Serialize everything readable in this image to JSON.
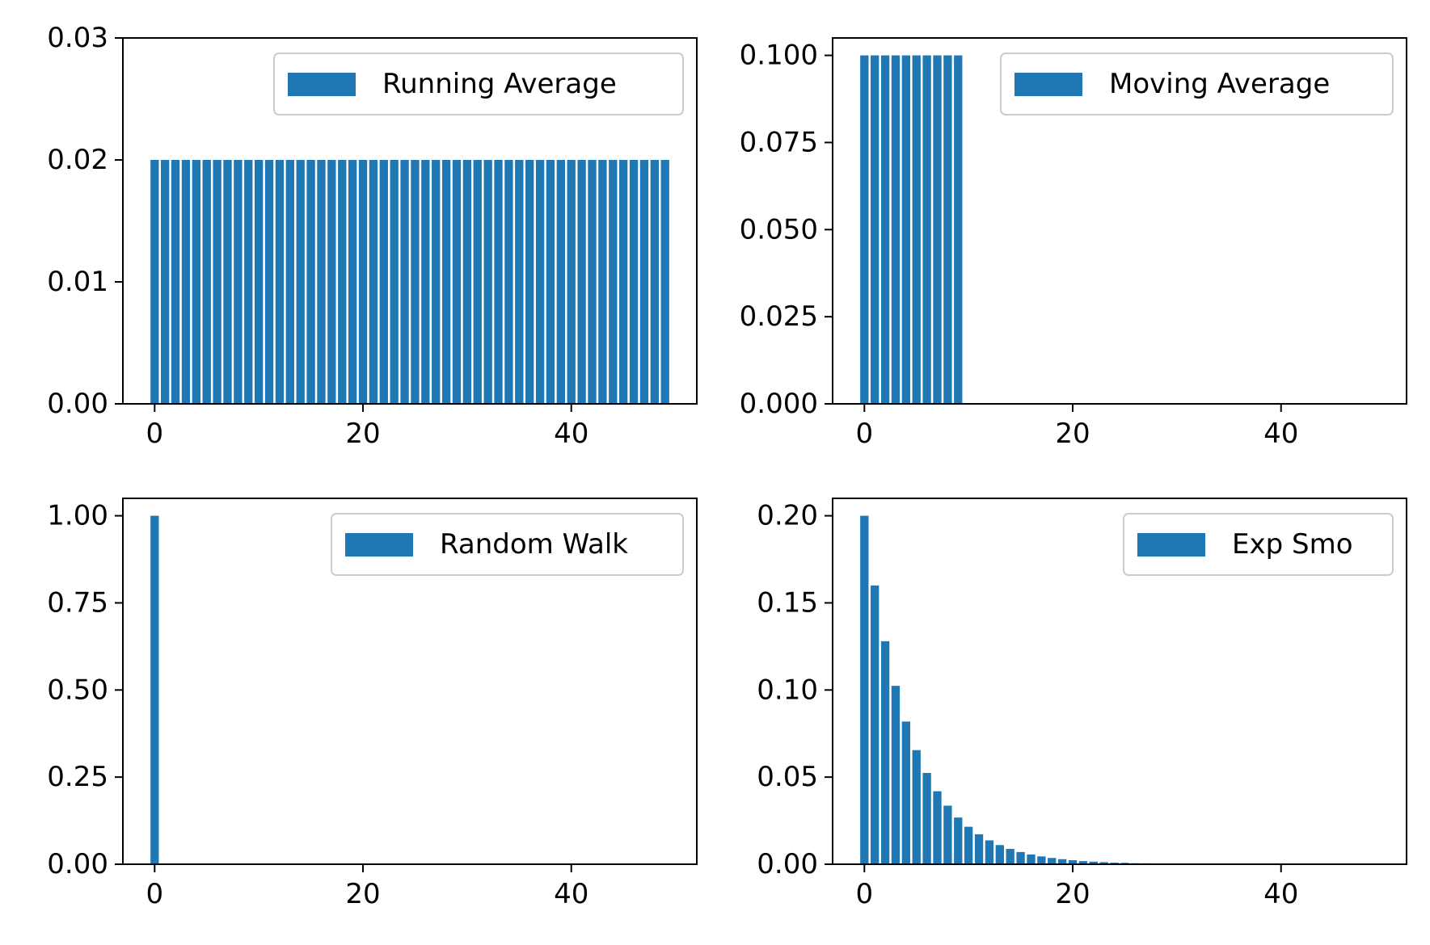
{
  "colors": {
    "bar": "#1f77b4",
    "axis": "#000000",
    "legend_border": "#cccccc",
    "background": "#ffffff"
  },
  "chart_data": [
    {
      "type": "bar",
      "legend": "Running Average",
      "legend_position": "top-right",
      "grid": false,
      "x": [
        0,
        1,
        2,
        3,
        4,
        5,
        6,
        7,
        8,
        9,
        10,
        11,
        12,
        13,
        14,
        15,
        16,
        17,
        18,
        19,
        20,
        21,
        22,
        23,
        24,
        25,
        26,
        27,
        28,
        29,
        30,
        31,
        32,
        33,
        34,
        35,
        36,
        37,
        38,
        39,
        40,
        41,
        42,
        43,
        44,
        45,
        46,
        47,
        48,
        49
      ],
      "values": [
        0.02,
        0.02,
        0.02,
        0.02,
        0.02,
        0.02,
        0.02,
        0.02,
        0.02,
        0.02,
        0.02,
        0.02,
        0.02,
        0.02,
        0.02,
        0.02,
        0.02,
        0.02,
        0.02,
        0.02,
        0.02,
        0.02,
        0.02,
        0.02,
        0.02,
        0.02,
        0.02,
        0.02,
        0.02,
        0.02,
        0.02,
        0.02,
        0.02,
        0.02,
        0.02,
        0.02,
        0.02,
        0.02,
        0.02,
        0.02,
        0.02,
        0.02,
        0.02,
        0.02,
        0.02,
        0.02,
        0.02,
        0.02,
        0.02,
        0.02
      ],
      "xlim": [
        -3.05,
        52.05
      ],
      "ylim": [
        0,
        0.03
      ],
      "xticks": [
        0,
        20,
        40
      ],
      "xtick_labels": [
        "0",
        "20",
        "40"
      ],
      "yticks": [
        0,
        0.01,
        0.02,
        0.03
      ],
      "ytick_labels": [
        "0.00",
        "0.01",
        "0.02",
        "0.03"
      ]
    },
    {
      "type": "bar",
      "legend": "Moving Average",
      "legend_position": "top-right",
      "grid": false,
      "x": [
        0,
        1,
        2,
        3,
        4,
        5,
        6,
        7,
        8,
        9,
        10,
        11,
        12,
        13,
        14,
        15,
        16,
        17,
        18,
        19,
        20,
        21,
        22,
        23,
        24,
        25,
        26,
        27,
        28,
        29,
        30,
        31,
        32,
        33,
        34,
        35,
        36,
        37,
        38,
        39,
        40,
        41,
        42,
        43,
        44,
        45,
        46,
        47,
        48,
        49
      ],
      "values": [
        0.1,
        0.1,
        0.1,
        0.1,
        0.1,
        0.1,
        0.1,
        0.1,
        0.1,
        0.1,
        0,
        0,
        0,
        0,
        0,
        0,
        0,
        0,
        0,
        0,
        0,
        0,
        0,
        0,
        0,
        0,
        0,
        0,
        0,
        0,
        0,
        0,
        0,
        0,
        0,
        0,
        0,
        0,
        0,
        0,
        0,
        0,
        0,
        0,
        0,
        0,
        0,
        0,
        0,
        0
      ],
      "xlim": [
        -3.05,
        52.05
      ],
      "ylim": [
        0,
        0.105
      ],
      "xticks": [
        0,
        20,
        40
      ],
      "xtick_labels": [
        "0",
        "20",
        "40"
      ],
      "yticks": [
        0,
        0.025,
        0.05,
        0.075,
        0.1
      ],
      "ytick_labels": [
        "0.000",
        "0.025",
        "0.050",
        "0.075",
        "0.100"
      ]
    },
    {
      "type": "bar",
      "legend": "Random Walk",
      "legend_position": "top-right",
      "grid": false,
      "x": [
        0,
        1,
        2,
        3,
        4,
        5,
        6,
        7,
        8,
        9,
        10,
        11,
        12,
        13,
        14,
        15,
        16,
        17,
        18,
        19,
        20,
        21,
        22,
        23,
        24,
        25,
        26,
        27,
        28,
        29,
        30,
        31,
        32,
        33,
        34,
        35,
        36,
        37,
        38,
        39,
        40,
        41,
        42,
        43,
        44,
        45,
        46,
        47,
        48,
        49
      ],
      "values": [
        1,
        0,
        0,
        0,
        0,
        0,
        0,
        0,
        0,
        0,
        0,
        0,
        0,
        0,
        0,
        0,
        0,
        0,
        0,
        0,
        0,
        0,
        0,
        0,
        0,
        0,
        0,
        0,
        0,
        0,
        0,
        0,
        0,
        0,
        0,
        0,
        0,
        0,
        0,
        0,
        0,
        0,
        0,
        0,
        0,
        0,
        0,
        0,
        0,
        0
      ],
      "xlim": [
        -3.05,
        52.05
      ],
      "ylim": [
        0,
        1.05
      ],
      "xticks": [
        0,
        20,
        40
      ],
      "xtick_labels": [
        "0",
        "20",
        "40"
      ],
      "yticks": [
        0,
        0.25,
        0.5,
        0.75,
        1.0
      ],
      "ytick_labels": [
        "0.00",
        "0.25",
        "0.50",
        "0.75",
        "1.00"
      ]
    },
    {
      "type": "bar",
      "legend": "Exp Smo",
      "legend_position": "top-right",
      "grid": false,
      "x": [
        0,
        1,
        2,
        3,
        4,
        5,
        6,
        7,
        8,
        9,
        10,
        11,
        12,
        13,
        14,
        15,
        16,
        17,
        18,
        19,
        20,
        21,
        22,
        23,
        24,
        25,
        26,
        27,
        28,
        29,
        30,
        31,
        32,
        33,
        34,
        35,
        36,
        37,
        38,
        39,
        40,
        41,
        42,
        43,
        44,
        45,
        46,
        47,
        48,
        49
      ],
      "values": [
        0.2,
        0.16,
        0.128,
        0.1024,
        0.0819,
        0.0655,
        0.0524,
        0.0419,
        0.0336,
        0.0268,
        0.0215,
        0.0172,
        0.0137,
        0.011,
        0.0088,
        0.007,
        0.0056,
        0.0045,
        0.0036,
        0.0029,
        0.0023,
        0.0018,
        0.0015,
        0.0012,
        0.0009,
        0.0008,
        0.0006,
        0.0005,
        0.0004,
        0.0003,
        0.0002,
        0.0002,
        0.0002,
        0.0001,
        0.0001,
        0.0001,
        0.0001,
        0.0001,
        0,
        0,
        0,
        0,
        0,
        0,
        0,
        0,
        0,
        0,
        0,
        0
      ],
      "xlim": [
        -3.05,
        52.05
      ],
      "ylim": [
        0,
        0.21
      ],
      "xticks": [
        0,
        20,
        40
      ],
      "xtick_labels": [
        "0",
        "20",
        "40"
      ],
      "yticks": [
        0,
        0.05,
        0.1,
        0.15,
        0.2
      ],
      "ytick_labels": [
        "0.00",
        "0.05",
        "0.10",
        "0.15",
        "0.20"
      ]
    }
  ]
}
